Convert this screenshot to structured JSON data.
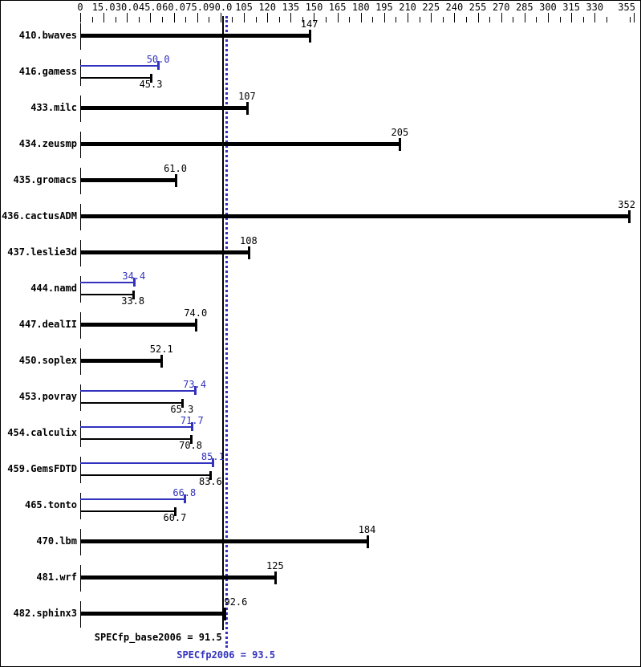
{
  "colors": {
    "black": "#000000",
    "blue": "#3232be"
  },
  "chart_data": {
    "type": "bar",
    "orientation": "horizontal",
    "title": "",
    "xlabel": "",
    "ylabel": "",
    "xlim": [
      0,
      355
    ],
    "grid": false,
    "axis": {
      "major_ticks": [
        {
          "label": "0",
          "value": 0
        },
        {
          "label": "15.0",
          "value": 15
        },
        {
          "label": "30.0",
          "value": 30
        },
        {
          "label": "45.0",
          "value": 45
        },
        {
          "label": "60.0",
          "value": 60
        },
        {
          "label": "75.0",
          "value": 75
        },
        {
          "label": "90.0",
          "value": 90
        },
        {
          "label": "105",
          "value": 105
        },
        {
          "label": "120",
          "value": 120
        },
        {
          "label": "135",
          "value": 135
        },
        {
          "label": "150",
          "value": 150
        },
        {
          "label": "165",
          "value": 165
        },
        {
          "label": "180",
          "value": 180
        },
        {
          "label": "195",
          "value": 195
        },
        {
          "label": "210",
          "value": 210
        },
        {
          "label": "225",
          "value": 225
        },
        {
          "label": "240",
          "value": 240
        },
        {
          "label": "255",
          "value": 255
        },
        {
          "label": "270",
          "value": 270
        },
        {
          "label": "285",
          "value": 285
        },
        {
          "label": "300",
          "value": 300
        },
        {
          "label": "315",
          "value": 315
        },
        {
          "label": "330",
          "value": 330
        },
        {
          "label": "355",
          "value": 355
        }
      ],
      "minor_step": 7.5,
      "minor_max": 352.5
    },
    "benchmarks": [
      {
        "name": "410.bwaves",
        "base": 147,
        "base_label": "147",
        "peak": null,
        "peak_label": null
      },
      {
        "name": "416.gamess",
        "base": 45.3,
        "base_label": "45.3",
        "peak": 50.0,
        "peak_label": "50.0"
      },
      {
        "name": "433.milc",
        "base": 107,
        "base_label": "107",
        "peak": null,
        "peak_label": null
      },
      {
        "name": "434.zeusmp",
        "base": 205,
        "base_label": "205",
        "peak": null,
        "peak_label": null
      },
      {
        "name": "435.gromacs",
        "base": 61.0,
        "base_label": "61.0",
        "peak": null,
        "peak_label": null
      },
      {
        "name": "436.cactusADM",
        "base": 352,
        "base_label": "352",
        "peak": null,
        "peak_label": null
      },
      {
        "name": "437.leslie3d",
        "base": 108,
        "base_label": "108",
        "peak": null,
        "peak_label": null
      },
      {
        "name": "444.namd",
        "base": 33.8,
        "base_label": "33.8",
        "peak": 34.4,
        "peak_label": "34.4"
      },
      {
        "name": "447.dealII",
        "base": 74.0,
        "base_label": "74.0",
        "peak": null,
        "peak_label": null
      },
      {
        "name": "450.soplex",
        "base": 52.1,
        "base_label": "52.1",
        "peak": null,
        "peak_label": null
      },
      {
        "name": "453.povray",
        "base": 65.3,
        "base_label": "65.3",
        "peak": 73.4,
        "peak_label": "73.4"
      },
      {
        "name": "454.calculix",
        "base": 70.8,
        "base_label": "70.8",
        "peak": 71.7,
        "peak_label": "71.7"
      },
      {
        "name": "459.GemsFDTD",
        "base": 83.6,
        "base_label": "83.6",
        "peak": 85.1,
        "peak_label": "85.1"
      },
      {
        "name": "465.tonto",
        "base": 60.7,
        "base_label": "60.7",
        "peak": 66.8,
        "peak_label": "66.8"
      },
      {
        "name": "470.lbm",
        "base": 184,
        "base_label": "184",
        "peak": null,
        "peak_label": null
      },
      {
        "name": "481.wrf",
        "base": 125,
        "base_label": "125",
        "peak": null,
        "peak_label": null
      },
      {
        "name": "482.sphinx3",
        "base": 92.6,
        "base_label": "92.6",
        "peak": null,
        "peak_label": null,
        "label_dx": 14
      }
    ],
    "reference_lines": [
      {
        "label": "SPECfp_base2006 = 91.5",
        "value": 91.5,
        "style": "solid",
        "color": "#000000"
      },
      {
        "label": "SPECfp2006 = 93.5",
        "value": 93.5,
        "style": "dotted",
        "color": "#3232be"
      }
    ]
  }
}
